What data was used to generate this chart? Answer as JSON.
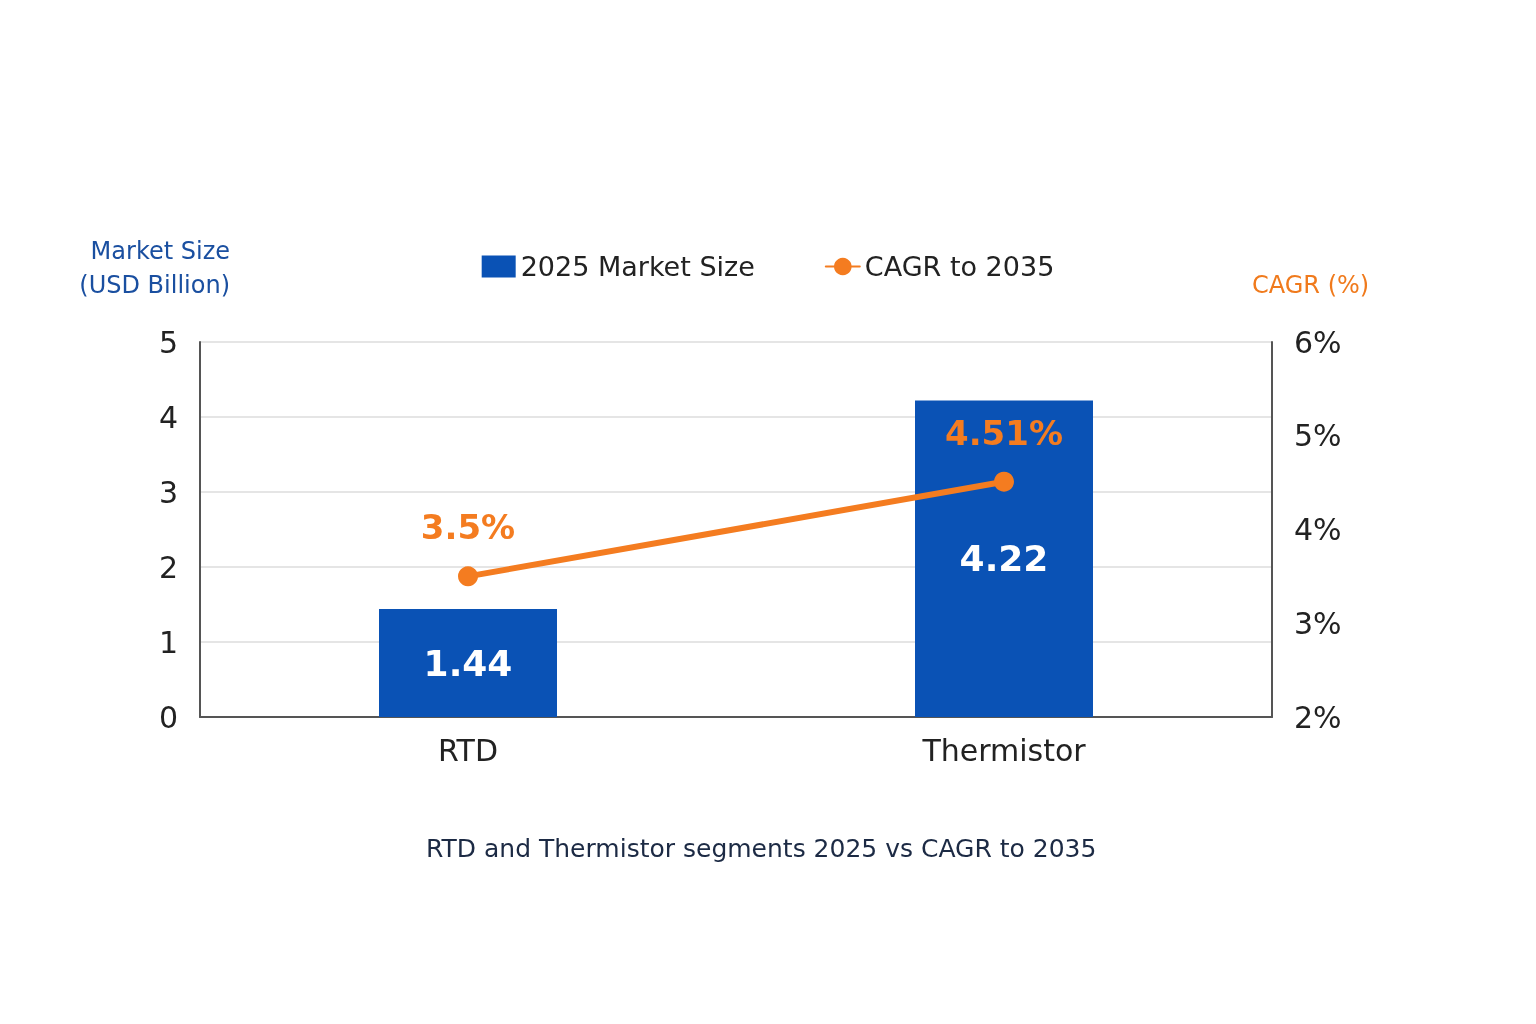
{
  "chart_data": {
    "type": "bar",
    "categories": [
      "RTD",
      "Thermistor"
    ],
    "series": [
      {
        "name": "2025 Market Size",
        "color": "#0a52b5",
        "values": [
          1.44,
          4.22
        ]
      },
      {
        "name": "CAGR to 2035",
        "type": "line",
        "axis": "y2",
        "color": "#f47c20",
        "values": [
          3.5,
          4.51
        ],
        "value_labels": [
          "3.5%",
          "4.51%"
        ]
      }
    ],
    "ylabel": "Market Size\n(USD Billion)",
    "y2label": "CAGR (%)",
    "ylim": [
      0,
      5
    ],
    "yticks": [
      0,
      1,
      2,
      3,
      4,
      5
    ],
    "y2lim": [
      2,
      6
    ],
    "y2ticks": [
      {
        "value": 2,
        "label": "2%"
      },
      {
        "value": 3,
        "label": "3%"
      },
      {
        "value": 4,
        "label": "4%"
      },
      {
        "value": 5,
        "label": "5%"
      },
      {
        "value": 6,
        "label": "6%"
      }
    ],
    "data_labels": true,
    "grid": "y",
    "legend": "top",
    "marker": "circle",
    "line_style": "solid",
    "annotations": [
      "RTD and Thermistor segments 2025 vs CAGR to 2035"
    ]
  }
}
